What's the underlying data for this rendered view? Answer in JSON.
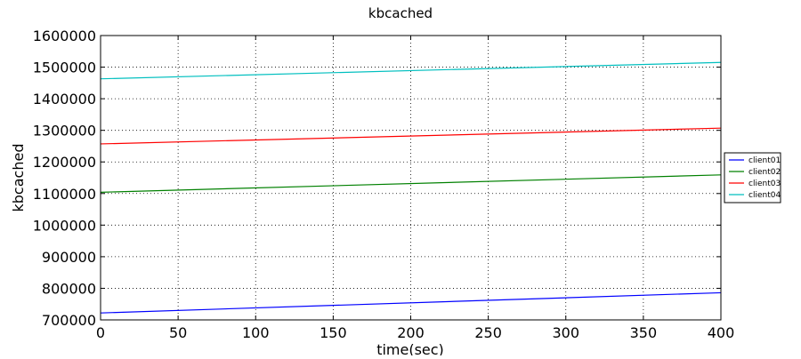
{
  "chart_data": {
    "type": "line",
    "title": "kbcached",
    "xlabel": "time(sec)",
    "ylabel": "kbcached",
    "xlim": [
      0,
      400
    ],
    "ylim": [
      700000,
      1600000
    ],
    "xticks": [
      0,
      50,
      100,
      150,
      200,
      250,
      300,
      350,
      400
    ],
    "yticks": [
      700000,
      800000,
      900000,
      1000000,
      1100000,
      1200000,
      1300000,
      1400000,
      1500000,
      1600000
    ],
    "grid": true,
    "legend": "right",
    "series": [
      {
        "name": "client01",
        "color": "#0000ff",
        "x": [
          0,
          400
        ],
        "y": [
          722000,
          786000
        ]
      },
      {
        "name": "client02",
        "color": "#008000",
        "x": [
          0,
          400
        ],
        "y": [
          1104000,
          1159000
        ]
      },
      {
        "name": "client03",
        "color": "#ff0000",
        "x": [
          0,
          400
        ],
        "y": [
          1257000,
          1307000
        ]
      },
      {
        "name": "client04",
        "color": "#00bfbf",
        "x": [
          0,
          400
        ],
        "y": [
          1463000,
          1515000
        ]
      }
    ]
  }
}
